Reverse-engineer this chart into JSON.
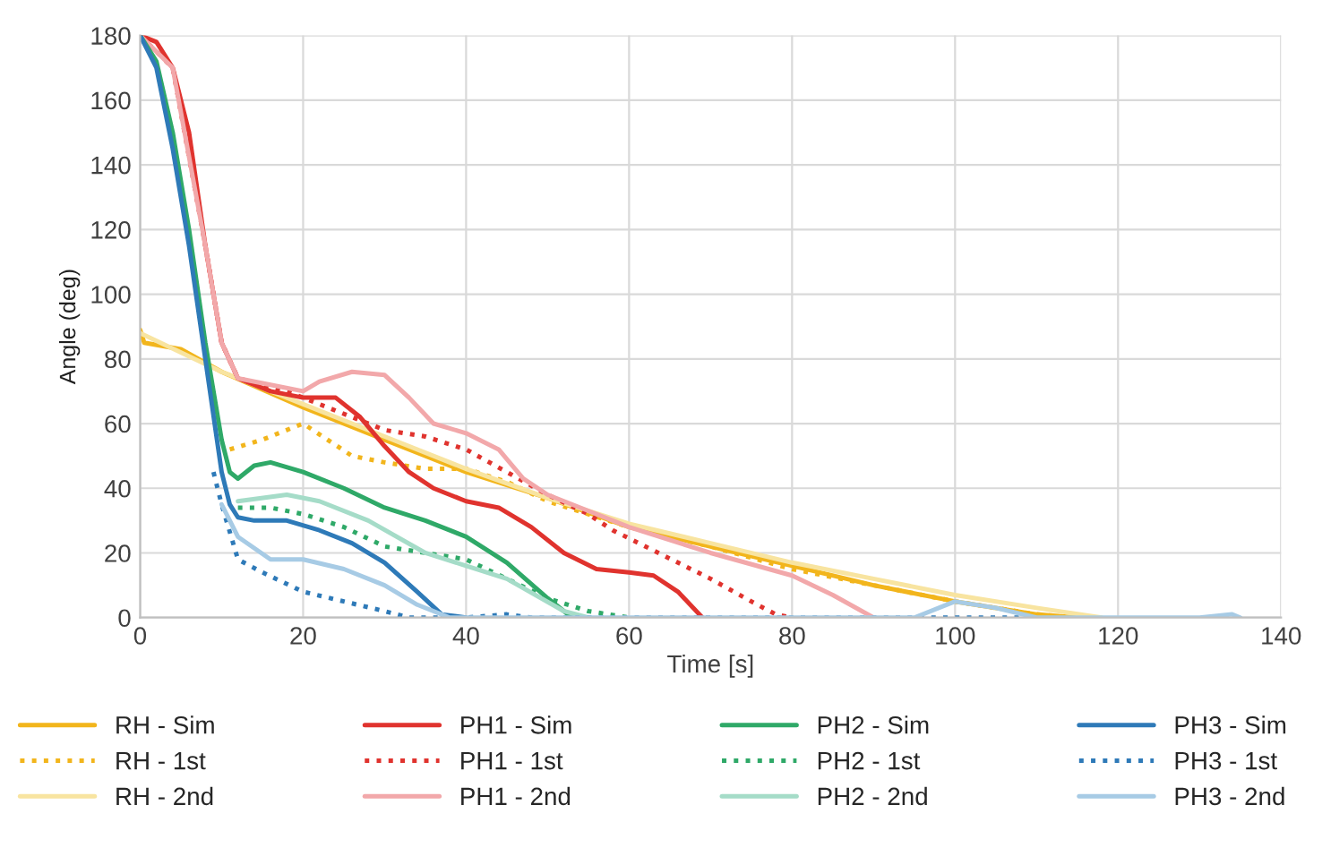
{
  "chart_data": {
    "type": "line",
    "xlabel": "Time [s]",
    "ylabel": "Angle (deg)",
    "xlim": [
      0,
      140
    ],
    "xticks": [
      0,
      20,
      40,
      60,
      80,
      100,
      120,
      140
    ],
    "ylim": [
      0,
      180
    ],
    "yticks": [
      0,
      20,
      40,
      60,
      80,
      100,
      120,
      140,
      160,
      180
    ],
    "grid": true,
    "legend": "bottom",
    "marker": "none",
    "series": [
      {
        "name": "RH - Sim",
        "color": "#f2b51c",
        "line_style": "solid",
        "x": [
          0,
          0.5,
          5,
          10,
          20,
          30,
          40,
          50,
          60,
          70,
          80,
          90,
          100,
          110,
          115
        ],
        "values": [
          89,
          85,
          83,
          76,
          65,
          55,
          45,
          37,
          28,
          22,
          16,
          10,
          5,
          1,
          0
        ]
      },
      {
        "name": "RH - 1st",
        "color": "#f2b51c",
        "line_style": "dotted",
        "x": [
          11,
          15,
          20,
          23,
          26,
          30,
          35,
          40,
          45,
          50,
          60,
          70,
          80,
          90,
          100,
          110,
          115
        ],
        "values": [
          52,
          55,
          60,
          55,
          50,
          48,
          46,
          46,
          42,
          36,
          28,
          22,
          15,
          10,
          5,
          1,
          0
        ]
      },
      {
        "name": "RH - 2nd",
        "color": "#f8e4a0",
        "line_style": "solid",
        "x": [
          0,
          10,
          20,
          30,
          40,
          50,
          60,
          70,
          80,
          90,
          100,
          110,
          118
        ],
        "values": [
          88,
          76,
          66,
          56,
          46,
          37,
          29,
          23,
          17,
          12,
          7,
          3,
          0
        ]
      },
      {
        "name": "PH1 - Sim",
        "color": "#e0332e",
        "line_style": "solid",
        "x": [
          0,
          2,
          4,
          6,
          8,
          10,
          12,
          16,
          20,
          24,
          27,
          30,
          33,
          36,
          40,
          44,
          48,
          52,
          56,
          60,
          63,
          66,
          69
        ],
        "values": [
          180,
          178,
          170,
          150,
          115,
          85,
          74,
          70,
          68,
          68,
          62,
          53,
          45,
          40,
          36,
          34,
          28,
          20,
          15,
          14,
          13,
          8,
          0
        ]
      },
      {
        "name": "PH1 - 1st",
        "color": "#e0332e",
        "line_style": "dotted",
        "x": [
          0,
          4,
          8,
          10,
          12,
          18,
          22,
          26,
          30,
          35,
          40,
          45,
          50,
          55,
          58,
          62,
          66,
          70,
          75,
          78,
          80
        ],
        "values": [
          180,
          170,
          115,
          85,
          74,
          70,
          66,
          62,
          58,
          56,
          52,
          45,
          38,
          32,
          27,
          22,
          17,
          12,
          5,
          1,
          0
        ]
      },
      {
        "name": "PH1 - 2nd",
        "color": "#f2a8aa",
        "line_style": "solid",
        "x": [
          0,
          4,
          8,
          10,
          12,
          16,
          20,
          22,
          26,
          30,
          33,
          36,
          40,
          44,
          47,
          50,
          55,
          60,
          70,
          80,
          85,
          90
        ],
        "values": [
          180,
          170,
          115,
          85,
          74,
          72,
          70,
          73,
          76,
          75,
          68,
          60,
          57,
          52,
          43,
          38,
          33,
          28,
          20,
          13,
          7,
          0
        ]
      },
      {
        "name": "PH2 - Sim",
        "color": "#2fa968",
        "line_style": "solid",
        "x": [
          0,
          2,
          4,
          6,
          8,
          10,
          11,
          12,
          14,
          16,
          20,
          25,
          30,
          35,
          40,
          45,
          50,
          53
        ],
        "values": [
          180,
          172,
          150,
          120,
          85,
          55,
          45,
          43,
          47,
          48,
          45,
          40,
          34,
          30,
          25,
          17,
          6,
          0
        ]
      },
      {
        "name": "PH2 - 1st",
        "color": "#2fa968",
        "line_style": "dotted",
        "x": [
          12,
          16,
          20,
          25,
          30,
          35,
          40,
          45,
          50,
          55,
          60
        ],
        "values": [
          34,
          34,
          32,
          28,
          22,
          20,
          18,
          12,
          6,
          2,
          0
        ]
      },
      {
        "name": "PH2 - 2nd",
        "color": "#a5dcc8",
        "line_style": "solid",
        "x": [
          12,
          18,
          22,
          28,
          35,
          40,
          45,
          52,
          55
        ],
        "values": [
          36,
          38,
          36,
          30,
          20,
          16,
          12,
          2,
          0
        ]
      },
      {
        "name": "PH3 - Sim",
        "color": "#2e7ab8",
        "line_style": "solid",
        "x": [
          0,
          2,
          4,
          6,
          8,
          10,
          11,
          12,
          14,
          18,
          22,
          26,
          30,
          34,
          37,
          40
        ],
        "values": [
          180,
          170,
          145,
          115,
          80,
          45,
          35,
          31,
          30,
          30,
          27,
          23,
          17,
          8,
          1,
          0
        ]
      },
      {
        "name": "PH3 - 1st",
        "color": "#2e7ab8",
        "line_style": "dotted",
        "x": [
          9,
          10,
          12,
          15,
          20,
          25,
          30,
          33,
          40,
          45,
          48,
          100,
          110
        ],
        "values": [
          45,
          35,
          18,
          14,
          8,
          5,
          2,
          0,
          0,
          1,
          0,
          0,
          0
        ]
      },
      {
        "name": "PH3 - 2nd",
        "color": "#a7cbe5",
        "line_style": "solid",
        "x": [
          10,
          12,
          16,
          20,
          25,
          30,
          34,
          38,
          95,
          100,
          105,
          110,
          130,
          134,
          135
        ],
        "values": [
          35,
          25,
          18,
          18,
          15,
          10,
          4,
          0,
          0,
          5,
          3,
          0,
          0,
          1,
          0
        ]
      }
    ]
  }
}
